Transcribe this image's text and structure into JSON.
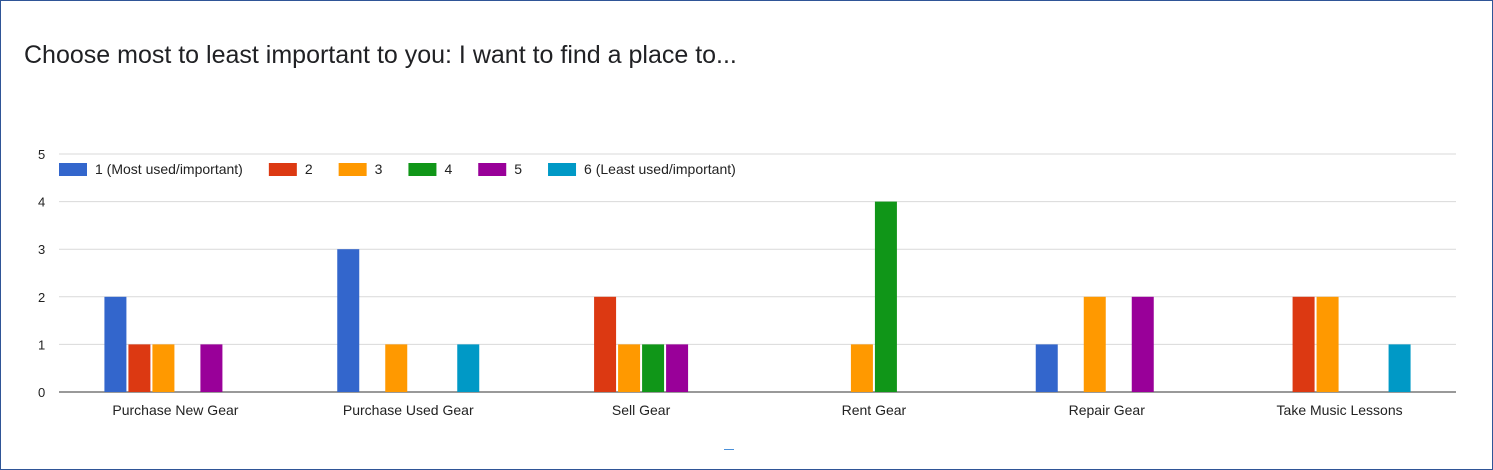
{
  "title": "Choose most to least important to you: I want to find a place to...",
  "chart_data": {
    "type": "bar",
    "title": "Choose most to least important to you: I want to find a place to...",
    "xlabel": "",
    "ylabel": "",
    "ylim": [
      0,
      5
    ],
    "yticks": [
      "0",
      "1",
      "2",
      "3",
      "4",
      "5"
    ],
    "grid": true,
    "legend_position": "top-left",
    "categories": [
      "Purchase New Gear",
      "Purchase Used Gear",
      "Sell Gear",
      "Rent Gear",
      "Repair Gear",
      "Take Music Lessons"
    ],
    "series": [
      {
        "name": "1 (Most used/important)",
        "color": "#3366cc",
        "values": [
          2,
          3,
          0,
          0,
          1,
          0
        ]
      },
      {
        "name": "2",
        "color": "#dc3912",
        "values": [
          1,
          0,
          2,
          0,
          0,
          2
        ]
      },
      {
        "name": "3",
        "color": "#ff9900",
        "values": [
          1,
          1,
          1,
          1,
          2,
          2
        ]
      },
      {
        "name": "4",
        "color": "#109618",
        "values": [
          0,
          0,
          1,
          4,
          0,
          0
        ]
      },
      {
        "name": "5",
        "color": "#990099",
        "values": [
          1,
          0,
          1,
          0,
          2,
          0
        ]
      },
      {
        "name": "6 (Least used/important)",
        "color": "#0099c6",
        "values": [
          0,
          1,
          0,
          0,
          0,
          1
        ]
      }
    ]
  }
}
